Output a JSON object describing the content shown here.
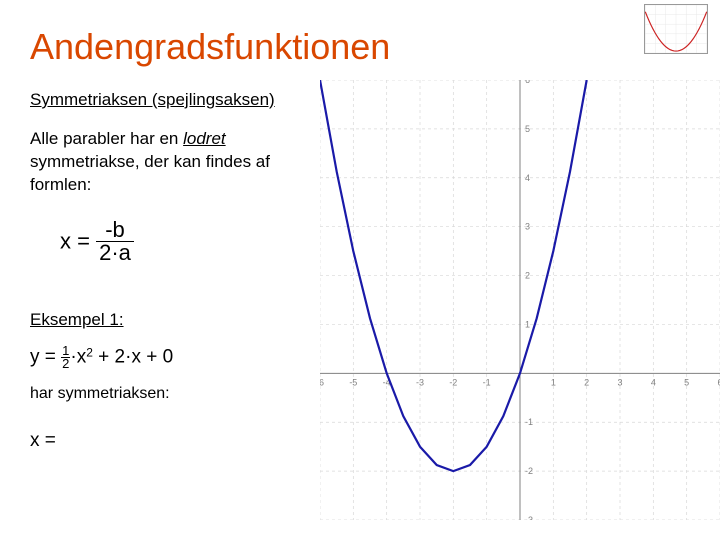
{
  "title": "Andengradsfunktionen",
  "subtitle": "Symmetriaksen (spejlingsaksen)",
  "body": {
    "p1a": "Alle parabler har en ",
    "p1b": "lodret",
    "p1c": " symmetriakse, der kan findes af formlen:"
  },
  "formula": {
    "lhs": "x = ",
    "num": "-b",
    "den": "2·a"
  },
  "example": {
    "heading": "Eksempel 1:",
    "eq_lhs": "y = ",
    "half_n": "1",
    "half_d": "2",
    "eq_rhs": "·x",
    "eq_exp": "2",
    "eq_tail": " + 2·x + 0",
    "p2": "har symmetriaksen:",
    "result": "x ="
  },
  "chart": {
    "type": "line",
    "background_color": "#ffffff",
    "grid_color": "#d8d8d8",
    "axis_color": "#808080",
    "curve_color": "#1a1aa8",
    "curve_width": 2.2,
    "xlim": [
      -6,
      6
    ],
    "ylim": [
      -3,
      6
    ],
    "xtick_step": 1,
    "ytick_step": 1,
    "tick_fontsize": 9,
    "tick_color": "#808080",
    "fn": "0.5*x^2 + 2*x",
    "symmetry_x": -2,
    "points": [
      [
        -6.0,
        6.0
      ],
      [
        -5.5,
        4.125
      ],
      [
        -5.0,
        2.5
      ],
      [
        -4.5,
        1.125
      ],
      [
        -4.0,
        0.0
      ],
      [
        -3.5,
        -0.875
      ],
      [
        -3.0,
        -1.5
      ],
      [
        -2.5,
        -1.875
      ],
      [
        -2.0,
        -2.0
      ],
      [
        -1.5,
        -1.875
      ],
      [
        -1.0,
        -1.5
      ],
      [
        -0.5,
        -0.875
      ],
      [
        0.0,
        0.0
      ],
      [
        0.5,
        1.125
      ],
      [
        1.0,
        2.5
      ],
      [
        1.5,
        4.125
      ],
      [
        2.0,
        6.0
      ]
    ]
  },
  "thumb": {
    "curve_color": "#cc2222",
    "bg": "#ffffff",
    "grid": "#e8e8e8"
  }
}
